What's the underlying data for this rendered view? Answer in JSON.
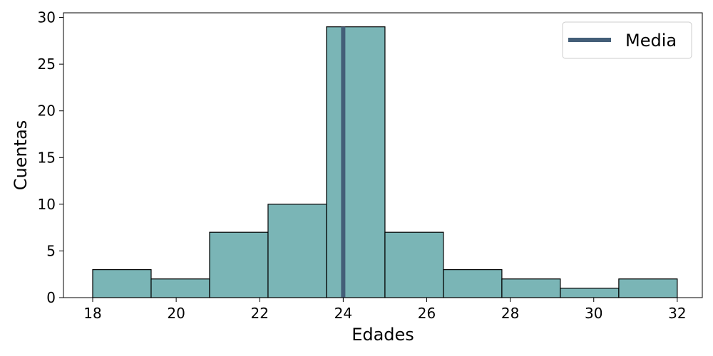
{
  "chart_data": {
    "type": "bar",
    "subtype": "histogram",
    "xlabel": "Edades",
    "ylabel": "Cuentas",
    "xlim": [
      17.3,
      32.6
    ],
    "ylim": [
      0,
      30.5
    ],
    "x_ticks": [
      18,
      20,
      22,
      24,
      26,
      28,
      30,
      32
    ],
    "y_ticks": [
      0,
      5,
      10,
      15,
      20,
      25,
      30
    ],
    "bins": [
      {
        "start": 18.0,
        "end": 19.4,
        "count": 3
      },
      {
        "start": 19.4,
        "end": 20.8,
        "count": 2
      },
      {
        "start": 20.8,
        "end": 22.2,
        "count": 7
      },
      {
        "start": 22.2,
        "end": 23.6,
        "count": 10
      },
      {
        "start": 23.6,
        "end": 25.0,
        "count": 29
      },
      {
        "start": 25.0,
        "end": 26.4,
        "count": 7
      },
      {
        "start": 26.4,
        "end": 27.8,
        "count": 3
      },
      {
        "start": 27.8,
        "end": 29.2,
        "count": 2
      },
      {
        "start": 29.2,
        "end": 30.6,
        "count": 1
      },
      {
        "start": 30.6,
        "end": 32.0,
        "count": 2
      }
    ],
    "mean": {
      "name": "Media",
      "x": 24.0
    },
    "legend": {
      "position": "top-right",
      "entries": [
        "Media"
      ]
    },
    "grid": false,
    "colors": {
      "bar_fill": "#7ab5b6",
      "bar_edge": "#000000",
      "mean_line": "#435e78"
    }
  }
}
